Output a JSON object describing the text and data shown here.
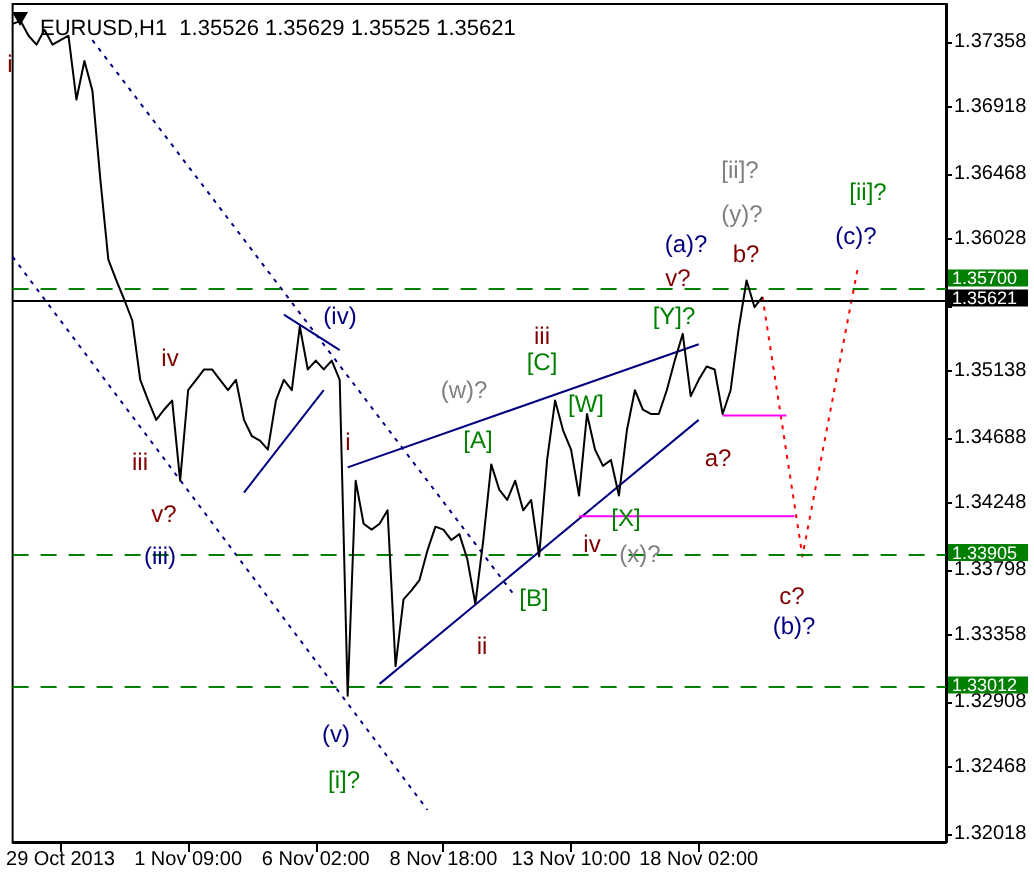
{
  "chart_data": {
    "type": "line",
    "title": "EURUSD,H1  1.35526 1.35629 1.35525 1.35621",
    "categories": [
      null,
      null,
      null,
      null,
      null,
      null,
      "29 Oct 2013",
      null,
      null,
      null,
      null,
      null,
      null,
      null,
      null,
      null,
      null,
      null,
      null,
      null,
      null,
      null,
      "1 Nov 09:00",
      null,
      null,
      null,
      null,
      null,
      null,
      null,
      null,
      null,
      null,
      null,
      null,
      null,
      null,
      null,
      "6 Nov 02:00",
      null,
      null,
      null,
      null,
      null,
      null,
      null,
      null,
      null,
      null,
      null,
      null,
      null,
      null,
      null,
      "8 Nov 18:00",
      null,
      null,
      null,
      null,
      null,
      null,
      null,
      null,
      null,
      null,
      null,
      null,
      null,
      null,
      null,
      "13 Nov 10:00",
      null,
      null,
      null,
      null,
      null,
      null,
      null,
      null,
      null,
      null,
      null,
      null,
      null,
      null,
      null,
      "18 Nov 02:00",
      null,
      null,
      null,
      null,
      null,
      null,
      null,
      null,
      null,
      null,
      null,
      null,
      null,
      null,
      null,
      null,
      null,
      null,
      null,
      null,
      null,
      null,
      null,
      null,
      null,
      null,
      null,
      null,
      null,
      null,
      null
    ],
    "ylim": [
      1.31964,
      1.37614
    ],
    "yticks": [
      1.37358,
      1.36918,
      1.36468,
      1.36028,
      {
        "value": 1.35578,
        "label": null
      },
      1.35138,
      1.34688,
      1.34248,
      1.33798,
      1.33358,
      1.32908,
      1.32468,
      1.32018
    ],
    "grid": false,
    "marker": "none",
    "series": [
      {
        "color": "#000000",
        "line_style": "solid",
        "values": [
          1.3748,
          1.375,
          1.374,
          1.3734,
          1.3744,
          1.3734,
          1.3737,
          1.374,
          1.3697,
          1.3723,
          1.3703,
          1.3643,
          1.3589,
          1.3575,
          1.3562,
          1.3548,
          1.3508,
          1.3494,
          1.3481,
          1.3488,
          1.3494,
          1.344,
          1.3501,
          1.3508,
          1.3515,
          1.3515,
          1.3508,
          1.3501,
          1.3508,
          1.3481,
          1.347,
          1.3467,
          1.3461,
          1.3494,
          1.3508,
          1.3501,
          1.3544,
          1.3515,
          1.3521,
          1.3515,
          1.3521,
          1.3508,
          1.3295,
          1.344,
          1.3411,
          1.3407,
          1.3411,
          1.342,
          1.3315,
          1.336,
          1.3366,
          1.3373,
          1.3393,
          1.3409,
          1.3407,
          1.34,
          1.3404,
          1.3387,
          1.3357,
          1.34,
          1.3451,
          1.3434,
          1.3427,
          1.344,
          1.342,
          1.3427,
          1.3389,
          1.3454,
          1.3494,
          1.3474,
          1.3461,
          1.343,
          1.3485,
          1.3461,
          1.345,
          1.3454,
          1.343,
          1.3474,
          1.3501,
          1.3488,
          1.3485,
          1.3485,
          1.3501,
          1.3521,
          1.3539,
          1.3497,
          1.3508,
          1.3517,
          1.3515,
          1.3485,
          1.3501,
          1.3542,
          1.3575,
          1.3557,
          1.3564,
          null,
          null,
          null,
          null,
          null,
          null,
          null,
          null,
          null,
          null,
          null,
          null,
          null,
          null,
          null,
          null,
          null,
          null,
          null,
          null,
          null,
          null,
          null
        ]
      },
      {
        "color": "#ff0000",
        "line_style": "dotted",
        "values": [
          null,
          null,
          null,
          null,
          null,
          null,
          null,
          null,
          null,
          null,
          null,
          null,
          null,
          null,
          null,
          null,
          null,
          null,
          null,
          null,
          null,
          null,
          null,
          null,
          null,
          null,
          null,
          null,
          null,
          null,
          null,
          null,
          null,
          null,
          null,
          null,
          null,
          null,
          null,
          null,
          null,
          null,
          null,
          null,
          null,
          null,
          null,
          null,
          null,
          null,
          null,
          null,
          null,
          null,
          null,
          null,
          null,
          null,
          null,
          null,
          null,
          null,
          null,
          null,
          null,
          null,
          null,
          null,
          null,
          null,
          null,
          null,
          null,
          null,
          null,
          null,
          null,
          null,
          null,
          null,
          null,
          null,
          null,
          null,
          null,
          null,
          null,
          null,
          null,
          null,
          null,
          null,
          null,
          null,
          1.3564,
          null,
          null,
          null,
          null,
          1.3389,
          null,
          null,
          null,
          null,
          null,
          null,
          1.3585,
          null,
          null,
          null,
          null,
          null,
          null,
          null,
          null,
          null,
          null,
          null
        ]
      },
      {
        "color": "#000080",
        "line_style": "dotted",
        "values": [
          null,
          null,
          null,
          null,
          null,
          null,
          null,
          null,
          null,
          null,
          1.3737,
          null,
          null,
          null,
          null,
          null,
          null,
          null,
          null,
          null,
          null,
          null,
          null,
          null,
          null,
          null,
          null,
          null,
          null,
          null,
          null,
          null,
          null,
          null,
          null,
          null,
          null,
          null,
          null,
          null,
          null,
          null,
          null,
          null,
          null,
          null,
          null,
          null,
          null,
          null,
          null,
          null,
          null,
          null,
          null,
          null,
          null,
          null,
          null,
          null,
          null,
          null,
          null,
          1.3362,
          null,
          null,
          null,
          null,
          null,
          null,
          null,
          null,
          null,
          null,
          null,
          null,
          null,
          null,
          null,
          null,
          null,
          null,
          null,
          null,
          null,
          null,
          null,
          null,
          null,
          null,
          null,
          null,
          null,
          null,
          null,
          null,
          null,
          null,
          null,
          null,
          null,
          null,
          null,
          null,
          null,
          null,
          null,
          null,
          null,
          null,
          null,
          null,
          null,
          null,
          null,
          null,
          null,
          null
        ]
      },
      {
        "color": "#000080",
        "line_style": "dotted",
        "values": [
          1.3591,
          null,
          null,
          null,
          null,
          null,
          null,
          null,
          null,
          null,
          null,
          null,
          null,
          null,
          null,
          null,
          null,
          null,
          null,
          null,
          null,
          null,
          null,
          null,
          null,
          null,
          null,
          null,
          null,
          null,
          null,
          null,
          null,
          null,
          null,
          null,
          null,
          null,
          null,
          null,
          null,
          null,
          null,
          null,
          null,
          null,
          null,
          null,
          null,
          null,
          null,
          null,
          1.3218,
          null,
          null,
          null,
          null,
          null,
          null,
          null,
          null,
          null,
          null,
          null,
          null,
          null,
          null,
          null,
          null,
          null,
          null,
          null,
          null,
          null,
          null,
          null,
          null,
          null,
          null,
          null,
          null,
          null,
          null,
          null,
          null,
          null,
          null,
          null,
          null,
          null,
          null,
          null,
          null,
          null,
          null,
          null,
          null,
          null,
          null,
          null,
          null,
          null,
          null,
          null,
          null,
          null,
          null,
          null,
          null,
          null,
          null,
          null,
          null,
          null,
          null,
          null,
          null,
          null
        ]
      },
      {
        "color": "#000080",
        "line_style": "solid",
        "values": [
          null,
          null,
          null,
          null,
          null,
          null,
          null,
          null,
          null,
          null,
          null,
          null,
          null,
          null,
          null,
          null,
          null,
          null,
          null,
          null,
          null,
          null,
          null,
          null,
          null,
          null,
          null,
          null,
          null,
          1.3432,
          null,
          null,
          null,
          null,
          null,
          null,
          null,
          null,
          null,
          1.3501,
          null,
          null,
          null,
          null,
          null,
          null,
          null,
          null,
          null,
          null,
          null,
          null,
          null,
          null,
          null,
          null,
          null,
          null,
          null,
          null,
          null,
          null,
          null,
          null,
          null,
          null,
          null,
          null,
          null,
          null,
          null,
          null,
          null,
          null,
          null,
          null,
          null,
          null,
          null,
          null,
          null,
          null,
          null,
          null,
          null,
          null,
          null,
          null,
          null,
          null,
          null,
          null,
          null,
          null,
          null,
          null,
          null,
          null,
          null,
          null,
          null,
          null,
          null,
          null,
          null,
          null,
          null,
          null,
          null,
          null,
          null,
          null,
          null,
          null,
          null,
          null,
          null,
          null
        ]
      },
      {
        "color": "#000080",
        "line_style": "solid",
        "values": [
          null,
          null,
          null,
          null,
          null,
          null,
          null,
          null,
          null,
          null,
          null,
          null,
          null,
          null,
          null,
          null,
          null,
          null,
          null,
          null,
          null,
          null,
          null,
          null,
          null,
          null,
          null,
          null,
          null,
          null,
          null,
          null,
          null,
          null,
          1.3552,
          null,
          null,
          null,
          null,
          null,
          null,
          1.3528,
          null,
          null,
          null,
          null,
          null,
          null,
          null,
          null,
          null,
          null,
          null,
          null,
          null,
          null,
          null,
          null,
          null,
          null,
          null,
          null,
          null,
          null,
          null,
          null,
          null,
          null,
          null,
          null,
          null,
          null,
          null,
          null,
          null,
          null,
          null,
          null,
          null,
          null,
          null,
          null,
          null,
          null,
          null,
          null,
          null,
          null,
          null,
          null,
          null,
          null,
          null,
          null,
          null,
          null,
          null,
          null,
          null,
          null,
          null,
          null,
          null,
          null,
          null,
          null,
          null,
          null,
          null,
          null,
          null,
          null,
          null,
          null,
          null,
          null,
          null,
          null
        ]
      },
      {
        "color": "#000080",
        "line_style": "solid",
        "values": [
          null,
          null,
          null,
          null,
          null,
          null,
          null,
          null,
          null,
          null,
          null,
          null,
          null,
          null,
          null,
          null,
          null,
          null,
          null,
          null,
          null,
          null,
          null,
          null,
          null,
          null,
          null,
          null,
          null,
          null,
          null,
          null,
          null,
          null,
          null,
          null,
          null,
          null,
          null,
          null,
          null,
          null,
          1.3449,
          null,
          null,
          null,
          null,
          null,
          null,
          null,
          null,
          null,
          null,
          null,
          null,
          null,
          null,
          null,
          null,
          null,
          null,
          null,
          null,
          null,
          null,
          null,
          null,
          null,
          null,
          null,
          null,
          null,
          null,
          null,
          null,
          null,
          null,
          null,
          null,
          null,
          null,
          null,
          null,
          null,
          null,
          null,
          1.3532,
          null,
          null,
          null,
          null,
          null,
          null,
          null,
          null,
          null,
          null,
          null,
          null,
          null,
          null,
          null,
          null,
          null,
          null,
          null,
          null,
          null,
          null,
          null,
          null,
          null,
          null,
          null,
          null,
          null,
          null,
          null
        ]
      },
      {
        "color": "#000080",
        "line_style": "solid",
        "values": [
          null,
          null,
          null,
          null,
          null,
          null,
          null,
          null,
          null,
          null,
          null,
          null,
          null,
          null,
          null,
          null,
          null,
          null,
          null,
          null,
          null,
          null,
          null,
          null,
          null,
          null,
          null,
          null,
          null,
          null,
          null,
          null,
          null,
          null,
          null,
          null,
          null,
          null,
          null,
          null,
          null,
          null,
          null,
          null,
          null,
          null,
          1.3303,
          null,
          null,
          null,
          null,
          null,
          null,
          null,
          null,
          null,
          null,
          null,
          null,
          null,
          null,
          null,
          null,
          null,
          null,
          null,
          null,
          null,
          null,
          null,
          null,
          null,
          null,
          null,
          null,
          null,
          null,
          null,
          null,
          null,
          null,
          null,
          null,
          null,
          null,
          null,
          1.3481,
          null,
          null,
          null,
          null,
          null,
          null,
          null,
          null,
          null,
          null,
          null,
          null,
          null,
          null,
          null,
          null,
          null,
          null,
          null,
          null,
          null,
          null,
          null,
          null,
          null,
          null,
          null,
          null,
          null,
          null,
          null
        ]
      },
      {
        "color": "#ff00ff",
        "line_style": "solid",
        "values": [
          null,
          null,
          null,
          null,
          null,
          null,
          null,
          null,
          null,
          null,
          null,
          null,
          null,
          null,
          null,
          null,
          null,
          null,
          null,
          null,
          null,
          null,
          null,
          null,
          null,
          null,
          null,
          null,
          null,
          null,
          null,
          null,
          null,
          null,
          null,
          null,
          null,
          null,
          null,
          null,
          null,
          null,
          null,
          null,
          null,
          null,
          null,
          null,
          null,
          null,
          null,
          null,
          null,
          null,
          null,
          null,
          null,
          null,
          null,
          null,
          null,
          null,
          null,
          null,
          null,
          null,
          null,
          null,
          null,
          null,
          null,
          1.3416,
          null,
          null,
          null,
          null,
          null,
          null,
          null,
          null,
          null,
          null,
          null,
          null,
          null,
          null,
          null,
          null,
          null,
          null,
          null,
          null,
          null,
          null,
          null,
          null,
          null,
          null,
          1.3416,
          null,
          null,
          null,
          null,
          null,
          null,
          null,
          null,
          null,
          null,
          null,
          null,
          null,
          null,
          null,
          null,
          null,
          null,
          null
        ]
      },
      {
        "color": "#ff00ff",
        "line_style": "solid",
        "values": [
          null,
          null,
          null,
          null,
          null,
          null,
          null,
          null,
          null,
          null,
          null,
          null,
          null,
          null,
          null,
          null,
          null,
          null,
          null,
          null,
          null,
          null,
          null,
          null,
          null,
          null,
          null,
          null,
          null,
          null,
          null,
          null,
          null,
          null,
          null,
          null,
          null,
          null,
          null,
          null,
          null,
          null,
          null,
          null,
          null,
          null,
          null,
          null,
          null,
          null,
          null,
          null,
          null,
          null,
          null,
          null,
          null,
          null,
          null,
          null,
          null,
          null,
          null,
          null,
          null,
          null,
          null,
          null,
          null,
          null,
          null,
          null,
          null,
          null,
          null,
          null,
          null,
          null,
          null,
          null,
          null,
          null,
          null,
          null,
          null,
          null,
          null,
          null,
          null,
          1.3484,
          null,
          null,
          null,
          null,
          null,
          null,
          null,
          1.3484,
          null,
          null,
          null,
          null,
          null,
          null,
          null,
          null,
          null,
          null,
          null,
          null,
          null,
          null,
          null,
          null,
          null,
          null,
          null,
          null
        ]
      }
    ],
    "ref_lines": [
      {
        "axis": "y",
        "value": 1.35621,
        "label": "1.35621",
        "color": "#000000",
        "line_style": "solid"
      },
      {
        "axis": "y",
        "value": 1.357,
        "label": "1.35700",
        "color": "#008000",
        "line_style": "dashed"
      },
      {
        "axis": "y",
        "value": 1.33905,
        "label": "1.33905",
        "color": "#008000",
        "line_style": "dashed"
      },
      {
        "axis": "y",
        "value": 1.33012,
        "label": "1.33012",
        "color": "#008000",
        "line_style": "dashed"
      }
    ],
    "annotations": [
      "i",
      "iv",
      "iii",
      "v?",
      "(iii)",
      "(iv)",
      "i",
      "(v)",
      "[i]?",
      "(w)?",
      "[A]",
      "iii",
      "[C]",
      "[W]",
      "[B]",
      "ii",
      "iv",
      "[X]",
      "(x)?",
      "[Y]?",
      "v?",
      "(a)?",
      "[ii]?",
      "(y)?",
      "b?",
      "a?",
      "c?",
      "(b)?",
      "[ii]?",
      "(c)?"
    ]
  }
}
